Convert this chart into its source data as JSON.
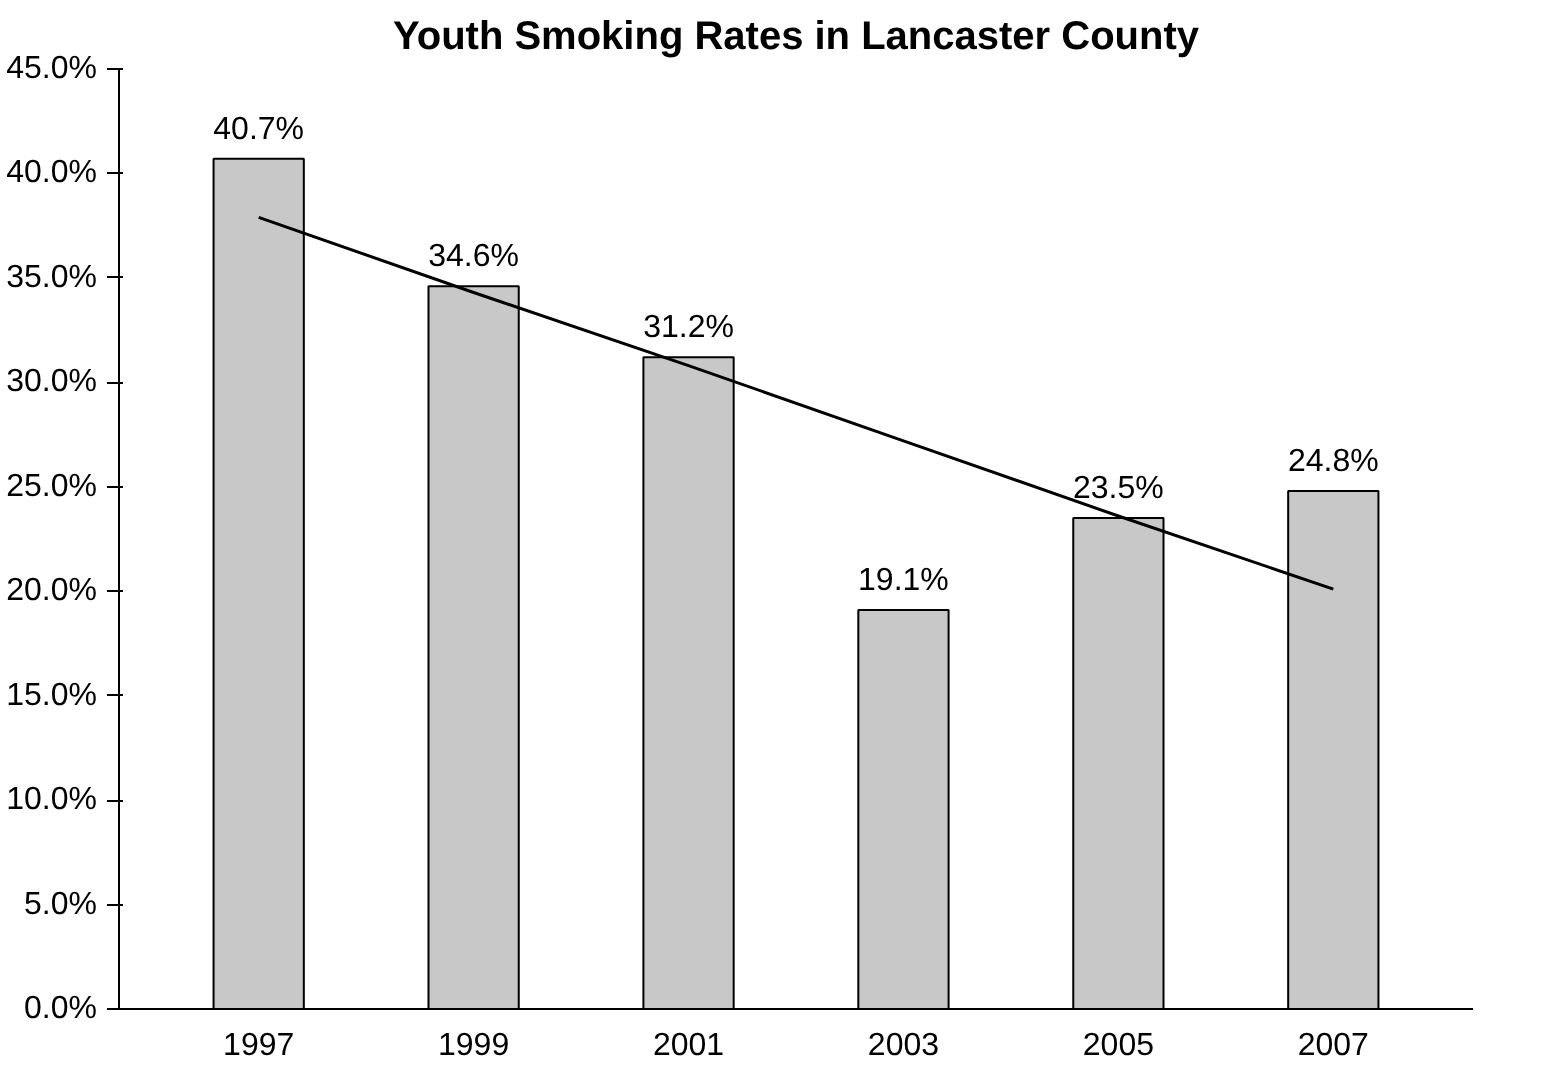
{
  "chart_data": {
    "type": "bar",
    "title": "Youth Smoking Rates in Lancaster County",
    "categories": [
      "1997",
      "1999",
      "2001",
      "2003",
      "2005",
      "2007"
    ],
    "series": [
      {
        "color": "#c8c8c8",
        "values": [
          40.7,
          34.6,
          31.2,
          19.1,
          23.5,
          24.8
        ],
        "value_labels": [
          "40.7%",
          "34.6%",
          "31.2%",
          "19.1%",
          "23.5%",
          "24.8%"
        ]
      },
      {
        "type": "line",
        "color": "#000000",
        "values": [
          37.9,
          34.3,
          30.8,
          27.2,
          23.6,
          20.1
        ]
      }
    ],
    "ylim": [
      0,
      45
    ],
    "yticks": [
      {
        "value": 0,
        "label": "0.0%"
      },
      {
        "value": 5,
        "label": "5.0%"
      },
      {
        "value": 10,
        "label": "10.0%"
      },
      {
        "value": 15,
        "label": "15.0%"
      },
      {
        "value": 20,
        "label": "20.0%"
      },
      {
        "value": 25,
        "label": "25.0%"
      },
      {
        "value": 30,
        "label": "30.0%"
      },
      {
        "value": 35,
        "label": "35.0%"
      },
      {
        "value": 40,
        "label": "40.0%"
      },
      {
        "value": 45,
        "label": "45.0%"
      }
    ],
    "grid": false
  }
}
